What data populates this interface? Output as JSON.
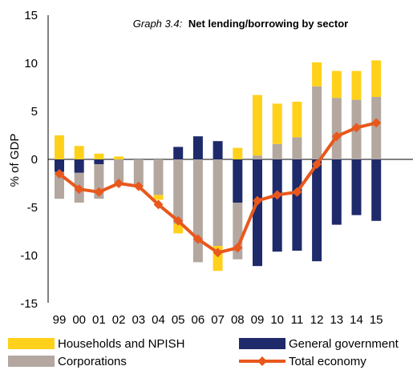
{
  "chart_data": {
    "type": "bar",
    "title_prefix": "Graph 3.4:",
    "title": "Net lending/borrowing by sector",
    "ylabel": "% of GDP",
    "ylim": [
      -15,
      15
    ],
    "yticks": [
      -15,
      -10,
      -5,
      0,
      5,
      10,
      15
    ],
    "categories": [
      "99",
      "00",
      "01",
      "02",
      "03",
      "04",
      "05",
      "06",
      "07",
      "08",
      "09",
      "10",
      "11",
      "12",
      "13",
      "14",
      "15"
    ],
    "stacked": true,
    "series": [
      {
        "name": "General government",
        "color": "#1f2a6b",
        "values": [
          -1.3,
          -1.4,
          -0.5,
          0.0,
          0.0,
          0.0,
          1.3,
          2.4,
          1.9,
          -4.5,
          -11.1,
          -9.6,
          -9.5,
          -10.6,
          -6.8,
          -5.8,
          -6.4
        ]
      },
      {
        "name": "Corporations",
        "color": "#b3a7a0",
        "values": [
          -2.8,
          -3.1,
          -3.6,
          -2.4,
          -2.8,
          -3.7,
          -6.7,
          -10.7,
          -9.0,
          -5.9,
          0.4,
          1.6,
          2.3,
          7.6,
          6.4,
          6.2,
          6.5
        ]
      },
      {
        "name": "Households and NPISH",
        "color": "#ffd11a",
        "values": [
          2.5,
          1.4,
          0.6,
          0.3,
          0.0,
          -0.5,
          -1.0,
          0.0,
          -2.6,
          1.2,
          6.3,
          4.2,
          3.7,
          2.5,
          2.8,
          3.0,
          3.8
        ]
      }
    ],
    "line_series": {
      "name": "Total economy",
      "color": "#e8581c",
      "values": [
        -1.5,
        -3.1,
        -3.4,
        -2.5,
        -2.8,
        -4.7,
        -6.4,
        -8.3,
        -9.7,
        -9.2,
        -4.3,
        -3.7,
        -3.4,
        -0.5,
        2.4,
        3.3,
        3.8
      ]
    },
    "legend": {
      "position": "bottom",
      "order": [
        "Households and NPISH",
        "General government",
        "Corporations",
        "Total economy"
      ]
    },
    "grid": false
  }
}
